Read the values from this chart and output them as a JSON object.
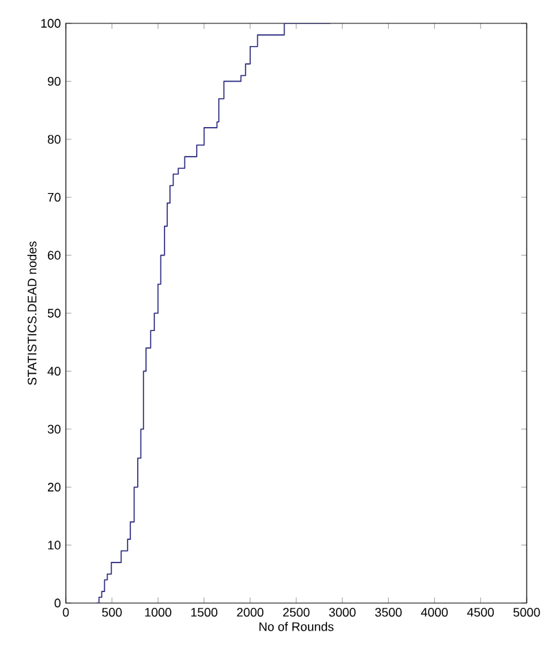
{
  "chart_data": {
    "type": "step",
    "xlabel": "No of Rounds",
    "ylabel": "STATISTICS.DEAD nodes",
    "xlim": [
      0,
      5000
    ],
    "ylim": [
      0,
      100
    ],
    "xticks": [
      0,
      500,
      1000,
      1500,
      2000,
      2500,
      3000,
      3500,
      4000,
      4500,
      5000
    ],
    "yticks": [
      0,
      10,
      20,
      30,
      40,
      50,
      60,
      70,
      80,
      90,
      100
    ],
    "grid": false,
    "series": [
      {
        "color": "#2b2b80",
        "x": [
          334,
          360,
          390,
          420,
          450,
          494,
          600,
          670,
          700,
          741,
          780,
          814,
          843,
          870,
          920,
          960,
          1000,
          1030,
          1070,
          1100,
          1130,
          1165,
          1220,
          1290,
          1420,
          1500,
          1640,
          1660,
          1715,
          1900,
          1950,
          2000,
          2080,
          2370,
          2870
        ],
        "values": [
          0,
          1,
          2,
          4,
          5,
          7,
          9,
          11,
          14,
          20,
          25,
          30,
          40,
          44,
          47,
          50,
          55,
          60,
          65,
          69,
          72,
          74,
          75,
          77,
          79,
          82,
          83,
          87,
          90,
          91,
          93,
          96,
          98,
          100,
          100
        ]
      }
    ]
  }
}
